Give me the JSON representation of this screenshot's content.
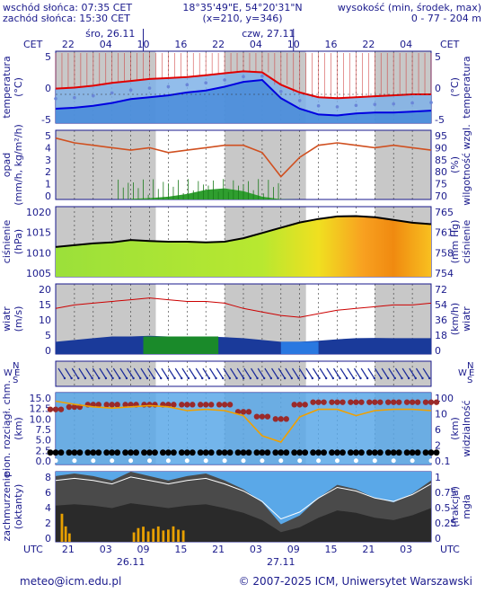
{
  "header": {
    "sunrise": "wschód słońca: 07:35 CET",
    "sunset": "zachód słońca: 15:30 CET",
    "coords": "18°35'49\"E, 54°20'31\"N",
    "grid": "(x=210,  y=346)",
    "elev_label": "wysokość (min, środek, max)",
    "elev_values": "0 - 77 - 204 m"
  },
  "top_axis": {
    "tz_left": "CET",
    "tz_right": "CET",
    "hours": [
      "22",
      "04",
      "10",
      "16",
      "22",
      "04",
      "10",
      "16",
      "22",
      "04"
    ],
    "day1": "śro, 26.11",
    "day2": "czw, 27.11"
  },
  "bottom_axis": {
    "tz_left": "UTC",
    "tz_right": "UTC",
    "hours": [
      "21",
      "03",
      "09",
      "15",
      "21",
      "03",
      "09",
      "15",
      "21",
      "03"
    ],
    "day1": "26.11",
    "day2": "27.11"
  },
  "panels": {
    "temperature": {
      "left_label": "temperatura",
      "left_unit": "(°C)",
      "right_label": "temperatura",
      "right_unit": "(°C)",
      "left_ticks": [
        "5",
        "0",
        "-5"
      ],
      "right_ticks": [
        "5",
        "0",
        "-5"
      ]
    },
    "precip": {
      "left_label": "opad",
      "left_unit": "(mm/h, kg/m²/h)",
      "right_label": "wilgotność wzgl.",
      "right_unit": "(%)",
      "left_ticks": [
        "5",
        "4",
        "3",
        "2",
        "1",
        "0"
      ],
      "right_ticks": [
        "95",
        "90",
        "85",
        "80",
        "75",
        "70"
      ]
    },
    "pressure": {
      "left_label": "ciśnienie",
      "left_unit": "(hPa)",
      "right_label": "ciśnienie",
      "right_unit": "(mm Hg)",
      "left_ticks": [
        "1020",
        "1015",
        "1010",
        "1005"
      ],
      "right_ticks": [
        "765",
        "761",
        "758",
        "754"
      ]
    },
    "wind": {
      "left_label": "wiatr",
      "left_unit": "(m/s)",
      "right_label": "wiatr",
      "right_unit": "(km/h)",
      "left_ticks": [
        "20",
        "15",
        "10",
        "5",
        "0"
      ],
      "right_ticks": [
        "72",
        "54",
        "36",
        "18",
        "0"
      ]
    },
    "wind_dir": {
      "left_N": "N",
      "left_W": "W",
      "left_E": "E",
      "left_S": "S",
      "right_N": "N",
      "right_W": "W",
      "right_E": "E",
      "right_S": "S"
    },
    "cloud_base": {
      "left_label": "pion. rozciągł. chm.",
      "left_unit": "(km)",
      "right_label": "widzialność",
      "right_unit": "(km)",
      "left_ticks": [
        "15.0",
        "12.5",
        "10.0",
        "7.5",
        "5.0",
        "2.5",
        "0.0"
      ],
      "right_ticks": [
        "100",
        "10",
        "6",
        "2",
        "0.1"
      ]
    },
    "cloudiness": {
      "left_label": "zachmurzenie",
      "left_unit": "(oktanty)",
      "right_label": "mgła",
      "right_unit": "(frakcja)",
      "left_ticks": [
        "8",
        "6",
        "4",
        "2",
        "0"
      ],
      "right_ticks": [
        "1",
        "0.75",
        "0.5",
        "0.25",
        "0"
      ]
    }
  },
  "footer": {
    "email": "meteo@icm.edu.pl",
    "copyright": "© 2007-2025 ICM, Uniwersytet Warszawski"
  },
  "colors": {
    "frame": "#1a1a8c",
    "night": "#c8c8c8",
    "temp_line": "#e00000",
    "dew_line": "#0000e0",
    "precip": "#2f9e2f",
    "humidity": "#d05020",
    "wind_gust": "#cc0000",
    "fog": "#e8a000"
  },
  "chart_data": [
    {
      "type": "line",
      "title": "temperatura",
      "ylabel": "(°C)",
      "ylim": [
        -6,
        9
      ],
      "x_hours": [
        0,
        3,
        6,
        9,
        12,
        15,
        18,
        21,
        24,
        27,
        30,
        33,
        36,
        39,
        42,
        45,
        48,
        51,
        54,
        57,
        60
      ],
      "series": [
        {
          "values": [
            1.2,
            1.4,
            1.8,
            2.4,
            2.8,
            3.2,
            3.4,
            3.6,
            4.0,
            4.4,
            4.8,
            4.6,
            2.0,
            0.4,
            -0.6,
            -0.8,
            -0.6,
            -0.4,
            -0.2,
            0.0,
            0.0
          ]
        },
        {
          "values": [
            -3.0,
            -2.8,
            -2.4,
            -1.8,
            -1.0,
            -0.6,
            -0.2,
            0.4,
            0.8,
            1.6,
            2.6,
            3.0,
            -0.8,
            -3.0,
            -4.2,
            -4.4,
            -4.0,
            -3.8,
            -3.8,
            -3.6,
            -3.4
          ]
        }
      ]
    },
    {
      "type": "bar",
      "title": "opad",
      "ylabel": "(mm/h, kg/m²/h)",
      "ylim": [
        0,
        5
      ],
      "x_hours": [
        12,
        15,
        18,
        21,
        24,
        27,
        30,
        33,
        36,
        39
      ],
      "values": [
        0.05,
        0.1,
        0.2,
        0.4,
        0.7,
        0.8,
        0.6,
        0.2,
        0.02,
        0.0
      ],
      "series": [
        {
          "x_hours": [
            0,
            3,
            6,
            9,
            12,
            15,
            18,
            21,
            24,
            27,
            30,
            33,
            36,
            39,
            42,
            45,
            48,
            51,
            54,
            57,
            60
          ],
          "values": [
            94,
            92,
            91,
            90,
            89,
            90,
            88,
            89,
            90,
            91,
            91,
            88,
            78,
            86,
            91,
            92,
            91,
            90,
            91,
            90,
            89
          ]
        }
      ]
    },
    {
      "type": "area",
      "title": "ciśnienie",
      "ylabel": "(hPa)",
      "ylim": [
        1003,
        1023
      ],
      "x_hours": [
        0,
        3,
        6,
        9,
        12,
        15,
        18,
        21,
        24,
        27,
        30,
        33,
        36,
        39,
        42,
        45,
        48,
        51,
        54,
        57,
        60
      ],
      "values": [
        1011.5,
        1012.0,
        1012.5,
        1012.8,
        1013.5,
        1013.2,
        1013.0,
        1013.0,
        1012.8,
        1013.0,
        1014.0,
        1015.5,
        1017.0,
        1018.5,
        1019.5,
        1020.2,
        1020.3,
        1020.0,
        1019.2,
        1018.4,
        1018.0
      ]
    },
    {
      "type": "line",
      "title": "wiatr",
      "ylabel": "(m/s)",
      "ylim": [
        0,
        20
      ],
      "x_hours": [
        0,
        3,
        6,
        9,
        12,
        15,
        18,
        21,
        24,
        27,
        30,
        33,
        36,
        39,
        42,
        45,
        48,
        51,
        54,
        57,
        60
      ],
      "series": [
        {
          "values": [
            3.5,
            4.0,
            4.5,
            5.0,
            5.0,
            5.2,
            5.0,
            5.0,
            5.0,
            4.8,
            4.5,
            4.0,
            3.5,
            3.5,
            3.8,
            4.2,
            4.5,
            4.6,
            4.5,
            4.5,
            4.5
          ]
        },
        {
          "values": [
            13.0,
            14.0,
            14.5,
            15.0,
            15.5,
            16.0,
            15.5,
            15.0,
            15.0,
            14.5,
            13.0,
            12.0,
            11.0,
            10.5,
            11.5,
            12.5,
            13.0,
            13.5,
            14.0,
            14.0,
            14.5
          ]
        }
      ]
    },
    {
      "type": "scatter",
      "title": "pion. rozciągł. chm.",
      "ylabel": "(km)",
      "ylim": [
        0,
        15
      ],
      "x_hours": [
        0,
        3,
        6,
        9,
        12,
        15,
        18,
        21,
        24,
        27,
        30,
        33,
        36,
        39,
        42,
        45,
        48,
        51,
        54,
        57,
        60
      ],
      "values": [
        11.5,
        12.0,
        12.5,
        12.5,
        12.5,
        12.5,
        12.5,
        12.5,
        12.5,
        12.5,
        11.0,
        10.0,
        9.5,
        12.5,
        13.0,
        13.0,
        13.0,
        13.0,
        13.0,
        13.0,
        13.0
      ]
    },
    {
      "type": "area",
      "title": "zachmurzenie",
      "ylabel": "(oktanty)",
      "ylim": [
        0,
        8
      ],
      "x_hours": [
        0,
        3,
        6,
        9,
        12,
        15,
        18,
        21,
        24,
        27,
        30,
        33,
        36,
        39,
        42,
        45,
        48,
        51,
        54,
        57,
        60
      ],
      "values": [
        7.5,
        7.8,
        7.5,
        7.0,
        8.0,
        7.5,
        7.0,
        7.5,
        7.8,
        7.0,
        6.0,
        4.5,
        2.0,
        3.0,
        5.0,
        6.5,
        6.0,
        5.0,
        4.5,
        5.5,
        7.0
      ]
    }
  ]
}
